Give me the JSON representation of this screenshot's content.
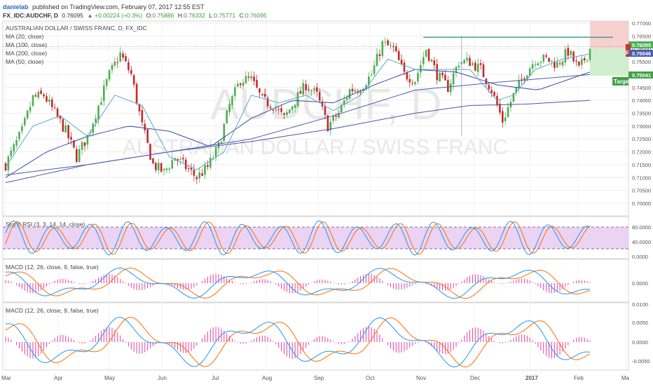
{
  "header": {
    "author": "danielab",
    "published_text": "published on TradingView.com, February 07, 2017 12:55 EST",
    "symbol": "FX_IDC:AUDCHF, D",
    "last": "0.76095",
    "change": "▲ +0.00224 (+0.3%)",
    "o_label": "O:",
    "o_value": "0.75886",
    "h_label": "H:",
    "h_value": "0.76332",
    "l_label": "L:",
    "l_value": "0.75771",
    "c_label": "C:",
    "c_value": "0.76095"
  },
  "main_pane": {
    "title": "AUSTRALIAN DOLLAR / SWISS FRANC, D, FX_IDC",
    "indicators": [
      "MA (20, close)",
      "MA (100, close)",
      "MA (200, close)",
      "MA (50, close)"
    ],
    "watermark_symbol": "AUDCHF, D",
    "watermark_name": "AUSTRALIAN DOLLAR / SWISS FRANC",
    "price_badge": "0.76095",
    "price_badge2": "0.76046",
    "r_marker": "R",
    "target_badge": "0.75041",
    "target_label": "Targe"
  },
  "stoch_pane": {
    "label": "Stoch RSI (3, 3, 14, 14, close)",
    "ticks": [
      "80.0000",
      "40.0000",
      "0.0000"
    ]
  },
  "macd1_pane": {
    "label": "MACD (12, 26, close, 9, false, true)",
    "ticks": [
      "0.0000"
    ]
  },
  "macd2_pane": {
    "label": "MACD (12, 26, close, 9, false, true)",
    "ticks": [
      "0.0100",
      "0.0050",
      "0.0000",
      "-0.0050"
    ]
  },
  "colors": {
    "up": "#4caf50",
    "down": "#c62828",
    "ma20": "#5aa9c4",
    "ma50": "#3b4a9e",
    "ma100": "#4a5eb0",
    "ma200": "#5353a8",
    "resistance": "#2e9e8e",
    "k": "#2196f3",
    "d": "#ff6d00",
    "hist": "#e040a0",
    "band": "#e1bee7"
  },
  "chart_data": {
    "type": "candlestick",
    "xlabel": "",
    "ylabel": "",
    "ylim": [
      0.7,
      0.77
    ],
    "y_ticks": [
      "0.77000",
      "0.76500",
      "0.76000",
      "0.75500",
      "0.75000",
      "0.74500",
      "0.74000",
      "0.73500",
      "0.73000",
      "0.72500",
      "0.72000",
      "0.71500",
      "0.71000",
      "0.70500",
      "0.70000"
    ],
    "x_ticks": [
      "Mar",
      "Apr",
      "May",
      "Jun",
      "Jul",
      "Aug",
      "Sep",
      "Oct",
      "Nov",
      "Dec",
      "2017",
      "Feb",
      "Ma"
    ],
    "resistance_level": 0.7645,
    "target_level": 0.75041,
    "current_price": 0.76095,
    "close_path": [
      [
        0,
        0.715
      ],
      [
        6,
        0.728
      ],
      [
        10,
        0.741
      ],
      [
        14,
        0.742
      ],
      [
        18,
        0.735
      ],
      [
        22,
        0.728
      ],
      [
        26,
        0.718
      ],
      [
        30,
        0.726
      ],
      [
        34,
        0.738
      ],
      [
        38,
        0.75
      ],
      [
        42,
        0.758
      ],
      [
        46,
        0.75
      ],
      [
        50,
        0.73
      ],
      [
        54,
        0.715
      ],
      [
        58,
        0.712
      ],
      [
        62,
        0.718
      ],
      [
        66,
        0.714
      ],
      [
        70,
        0.71
      ],
      [
        74,
        0.714
      ],
      [
        78,
        0.722
      ],
      [
        82,
        0.738
      ],
      [
        86,
        0.748
      ],
      [
        90,
        0.748
      ],
      [
        94,
        0.74
      ],
      [
        98,
        0.738
      ],
      [
        102,
        0.733
      ],
      [
        106,
        0.74
      ],
      [
        110,
        0.746
      ],
      [
        114,
        0.742
      ],
      [
        118,
        0.73
      ],
      [
        122,
        0.735
      ],
      [
        126,
        0.744
      ],
      [
        130,
        0.745
      ],
      [
        134,
        0.75
      ],
      [
        138,
        0.762
      ],
      [
        142,
        0.76
      ],
      [
        146,
        0.75
      ],
      [
        150,
        0.748
      ],
      [
        154,
        0.76
      ],
      [
        158,
        0.75
      ],
      [
        162,
        0.745
      ],
      [
        166,
        0.755
      ],
      [
        170,
        0.755
      ],
      [
        174,
        0.752
      ],
      [
        178,
        0.744
      ],
      [
        182,
        0.732
      ],
      [
        186,
        0.742
      ],
      [
        190,
        0.75
      ],
      [
        194,
        0.756
      ],
      [
        198,
        0.756
      ],
      [
        202,
        0.754
      ],
      [
        206,
        0.759
      ],
      [
        210,
        0.752
      ],
      [
        214,
        0.76
      ]
    ],
    "ma20": [
      [
        0,
        0.714
      ],
      [
        10,
        0.73
      ],
      [
        20,
        0.734
      ],
      [
        30,
        0.726
      ],
      [
        40,
        0.742
      ],
      [
        50,
        0.738
      ],
      [
        60,
        0.718
      ],
      [
        70,
        0.713
      ],
      [
        80,
        0.72
      ],
      [
        90,
        0.742
      ],
      [
        100,
        0.739
      ],
      [
        110,
        0.742
      ],
      [
        120,
        0.736
      ],
      [
        130,
        0.742
      ],
      [
        140,
        0.756
      ],
      [
        150,
        0.752
      ],
      [
        160,
        0.752
      ],
      [
        170,
        0.752
      ],
      [
        180,
        0.74
      ],
      [
        186,
        0.742
      ],
      [
        194,
        0.752
      ],
      [
        204,
        0.756
      ],
      [
        214,
        0.758
      ]
    ],
    "ma50": [
      [
        0,
        0.71
      ],
      [
        15,
        0.72
      ],
      [
        30,
        0.726
      ],
      [
        45,
        0.73
      ],
      [
        60,
        0.728
      ],
      [
        75,
        0.722
      ],
      [
        90,
        0.733
      ],
      [
        105,
        0.74
      ],
      [
        120,
        0.739
      ],
      [
        135,
        0.746
      ],
      [
        150,
        0.752
      ],
      [
        165,
        0.751
      ],
      [
        180,
        0.746
      ],
      [
        195,
        0.744
      ],
      [
        214,
        0.751
      ]
    ],
    "ma100": [
      [
        0,
        0.708
      ],
      [
        30,
        0.715
      ],
      [
        60,
        0.72
      ],
      [
        90,
        0.725
      ],
      [
        120,
        0.734
      ],
      [
        150,
        0.744
      ],
      [
        180,
        0.747
      ],
      [
        214,
        0.75
      ]
    ],
    "ma200": [
      [
        0,
        0.711
      ],
      [
        30,
        0.715
      ],
      [
        60,
        0.72
      ],
      [
        90,
        0.724
      ],
      [
        120,
        0.729
      ],
      [
        150,
        0.735
      ],
      [
        170,
        0.738
      ],
      [
        190,
        0.7385
      ],
      [
        214,
        0.74
      ]
    ]
  }
}
